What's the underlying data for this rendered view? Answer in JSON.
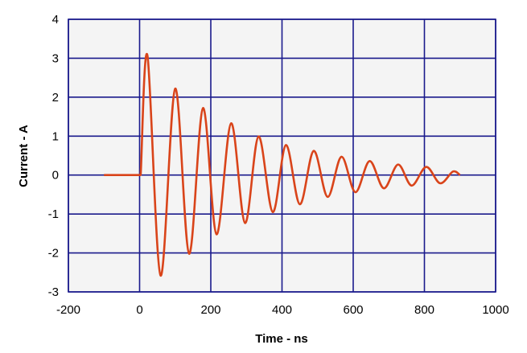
{
  "chart_data": {
    "type": "line",
    "title": "",
    "xlabel": "Time - ns",
    "ylabel": "Current - A",
    "xlim": [
      -200,
      1000
    ],
    "ylim": [
      -3,
      4
    ],
    "xticks": [
      -200,
      0,
      200,
      400,
      600,
      800,
      1000
    ],
    "yticks": [
      -3,
      -2,
      -1,
      0,
      1,
      2,
      3,
      4
    ],
    "grid": true,
    "colors": {
      "line": "#d9441a",
      "grid": "#1a1a8c",
      "plot_bg": "#f4f4f4"
    },
    "series": [
      {
        "x": [
          -100,
          0,
          3,
          22,
          59,
          100,
          139,
          178,
          216,
          257,
          296,
          334,
          374,
          411,
          450,
          489,
          528,
          567,
          606,
          646,
          686,
          726,
          764,
          805,
          844,
          880,
          900
        ],
        "y": [
          0,
          0,
          0,
          3.07,
          -2.58,
          2.22,
          -2.02,
          1.72,
          -1.52,
          1.33,
          -1.23,
          0.99,
          -0.95,
          0.77,
          -0.75,
          0.62,
          -0.56,
          0.47,
          -0.44,
          0.36,
          -0.34,
          0.27,
          -0.27,
          0.21,
          -0.21,
          0.09,
          0
        ]
      }
    ]
  }
}
